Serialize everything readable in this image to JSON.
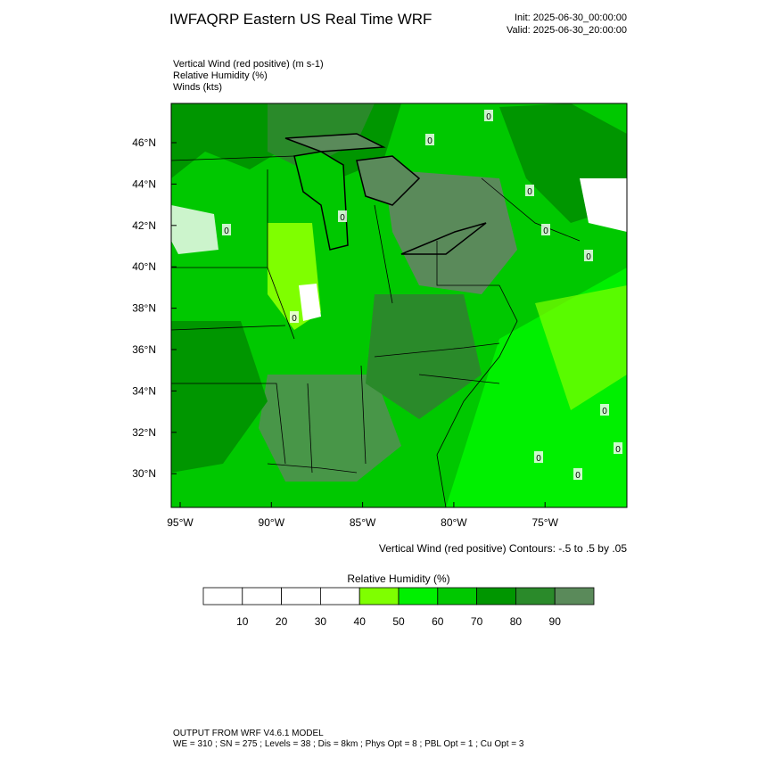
{
  "header": {
    "title": "IWFAQRP Eastern US Real Time WRF",
    "init": "Init: 2025-06-30_00:00:00",
    "valid": "Valid: 2025-06-30_20:00:00"
  },
  "fields": [
    "Vertical Wind (red positive)   (m s-1)",
    "Relative Humidity   (%)",
    "Winds   (kts)"
  ],
  "map": {
    "lat_labels": [
      "46°N",
      "44°N",
      "42°N",
      "40°N",
      "38°N",
      "36°N",
      "34°N",
      "32°N",
      "30°N"
    ],
    "lon_labels": [
      "95°W",
      "90°W",
      "85°W",
      "80°W",
      "75°W"
    ],
    "contour_labels": [
      "0",
      "0",
      "0",
      "0",
      "0",
      "0",
      "0",
      "0",
      "0",
      "0",
      "0",
      "0"
    ],
    "contour_note": "Vertical Wind (red positive) Contours: -.5 to .5 by .05"
  },
  "colorbar": {
    "title": "Relative Humidity  (%)",
    "colors": [
      "#ffffff",
      "#ffffff",
      "#ffffff",
      "#ffffff",
      "#7fff00",
      "#00f000",
      "#00c800",
      "#009600",
      "#2a8a2a",
      "#5a8a5a"
    ],
    "labels": [
      "10",
      "20",
      "30",
      "40",
      "50",
      "60",
      "70",
      "80",
      "90"
    ]
  },
  "footer": {
    "line1": "OUTPUT FROM WRF V4.6.1 MODEL",
    "line2": "WE = 310 ; SN = 275 ; Levels = 38 ; Dis = 8km ; Phys Opt = 8 ; PBL Opt = 1 ; Cu Opt = 3"
  }
}
